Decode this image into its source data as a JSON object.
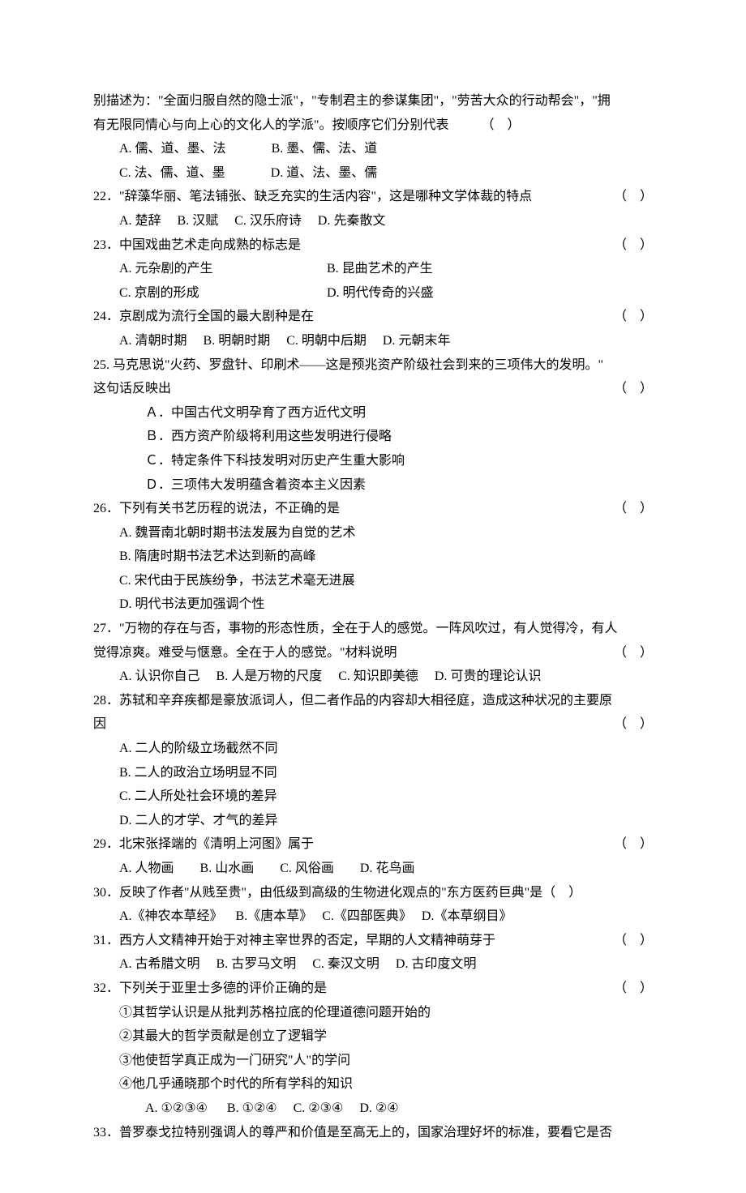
{
  "intro": "别描述为：\"全面归服自然的隐士派\"，\"专制君主的参谋集团\"，\"劳苦大众的行动帮会\"，\"拥有无限同情心与向上心的文化人的学派\"。按顺序它们分别代表",
  "q21": {
    "A": "A. 儒、道、墨、法",
    "B": "B. 墨、儒、法、道",
    "C": "C. 法、儒、道、墨",
    "D": "D. 道、法、墨、儒"
  },
  "q22": {
    "stem": "22．\"辞藻华丽、笔法铺张、缺乏充实的生活内容\"，这是哪种文学体裁的特点",
    "opts": "A. 楚辞     B. 汉赋     C. 汉乐府诗     D. 先秦散文"
  },
  "q23": {
    "stem": "23．中国戏曲艺术走向成熟的标志是",
    "A": "A. 元杂剧的产生",
    "B": "B. 昆曲艺术的产生",
    "C": "C. 京剧的形成",
    "D": "D. 明代传奇的兴盛"
  },
  "q24": {
    "stem": "24．京剧成为流行全国的最大剧种是在",
    "opts": "A. 清朝时期     B. 明朝时期     C. 明朝中后期     D. 元朝末年"
  },
  "q25": {
    "stem1": "25. 马克思说\"火药、罗盘针、印刷术——这是预兆资产阶级社会到来的三项伟大的发明。\"",
    "stem2": "这句话反映出",
    "A": "Ａ．中国古代文明孕育了西方近代文明",
    "B": "Ｂ．西方资产阶级将利用这些发明进行侵略",
    "C": "Ｃ．特定条件下科技发明对历史产生重大影响",
    "D": "Ｄ．三项伟大发明蕴含着资本主义因素"
  },
  "q26": {
    "stem": "26．下列有关书艺历程的说法，不正确的是",
    "A": "A. 魏晋南北朝时期书法发展为自觉的艺术",
    "B": "B. 隋唐时期书法艺术达到新的高峰",
    "C": "C. 宋代由于民族纷争，书法艺术毫无进展",
    "D": "D. 明代书法更加强调个性"
  },
  "q27": {
    "stem1": "27．\"万物的存在与否，事物的形态性质，全在于人的感觉。一阵风吹过，有人觉得冷，有人",
    "stem2": "觉得凉爽。难受与惬意。全在于人的感觉。\"材料说明",
    "opts": "A. 认识你自己     B. 人是万物的尺度     C. 知识即美德     D. 可贵的理论认识"
  },
  "q28": {
    "stem1": "28．苏轼和辛弃疾都是豪放派词人，但二者作品的内容却大相径庭，造成这种状况的主要原",
    "stem2": "因",
    "A": "A. 二人的阶级立场截然不同",
    "B": "B. 二人的政治立场明显不同",
    "C": "C. 二人所处社会环境的差异",
    "D": "D. 二人的才学、才气的差异"
  },
  "q29": {
    "stem": "29．北宋张择端的《清明上河图》属于",
    "opts": "A. 人物画        B. 山水画        C. 风俗画        D. 花鸟画"
  },
  "q30": {
    "stem": "30．反映了作者\"从贱至贵\"，由低级到高级的生物进化观点的\"东方医药巨典\"是",
    "opts": "A.《神农本草经》    B.《唐本草》   C.《四部医典》   D.《本草纲目》"
  },
  "q31": {
    "stem": "31．西方人文精神开始于对神主宰世界的否定，早期的人文精神萌芽于",
    "opts": "A. 古希腊文明     B. 古罗马文明     C. 秦汉文明     D. 古印度文明"
  },
  "q32": {
    "stem": "32．下列关于亚里士多德的评价正确的是",
    "s1": "①其哲学认识是从批判苏格拉底的伦理道德问题开始的",
    "s2": "②其最大的哲学贡献是创立了逻辑学",
    "s3": "③他使哲学真正成为一门研究\"人\"的学问",
    "s4": "④他几乎通晓那个时代的所有学科的知识",
    "opts": "A. ①②③④      B. ①②④     C. ②③④     D. ②④"
  },
  "q33": {
    "stem": "33．普罗泰戈拉特别强调人的尊严和价值是至高无上的，国家治理好坏的标准，要看它是否"
  },
  "paren": "（    ）"
}
